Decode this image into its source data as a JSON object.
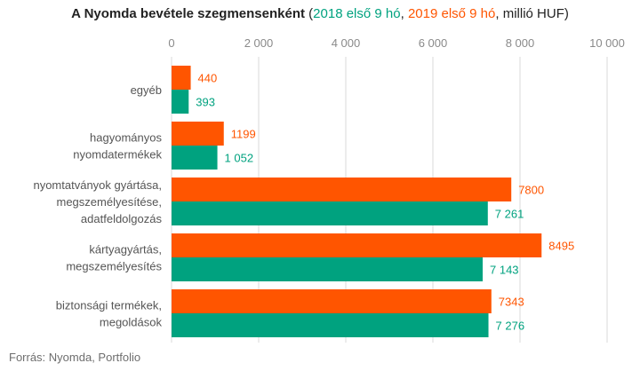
{
  "title": {
    "main": "A Nyomda bevétele szegmensenként",
    "open": "(",
    "series_2018": "2018 első 9 hó",
    "sep1": ", ",
    "series_2019": "2019 első 9 hó",
    "sep2": ", ",
    "unit": "millió  HUF",
    "close": ")"
  },
  "source": "Forrás: Nyomda, Portfolio",
  "colors": {
    "series_2019": "#ff5500",
    "series_2018": "#00a27f",
    "grid": "#d9d9d9",
    "tick_text": "#8a8a8a",
    "category_text": "#555555"
  },
  "chart_data": {
    "type": "bar",
    "orientation": "horizontal",
    "title": "A Nyomda bevétele szegmensenként (2018 első 9 hó, 2019 első 9 hó, millió  HUF)",
    "xlim": [
      0,
      10000
    ],
    "xticks": [
      0,
      2000,
      4000,
      6000,
      8000,
      10000
    ],
    "xtick_labels": [
      "0",
      "2 000",
      "4 000",
      "6 000",
      "8 000",
      "10 000"
    ],
    "grid": true,
    "axis_position": "top",
    "categories": [
      [
        "egyéb"
      ],
      [
        "hagyományos",
        "nyomdatermékek"
      ],
      [
        "nyomtatványok gyártása,",
        "megszemélyesítése,",
        "adatfeldolgozás"
      ],
      [
        "kártyagyártás,",
        "megszemélyesítés"
      ],
      [
        "biztonsági termékek,",
        "megoldások"
      ]
    ],
    "series": [
      {
        "name": "2019 első 9 hó",
        "values": [
          440,
          1199,
          7800,
          8495,
          7343
        ],
        "labels": [
          "440",
          "1199",
          "7800",
          "8495",
          "7343"
        ]
      },
      {
        "name": "2018 első 9 hó",
        "values": [
          393,
          1052,
          7261,
          7143,
          7276
        ],
        "labels": [
          "393",
          "1 052",
          "7 261",
          "7 143",
          "7 276"
        ]
      }
    ]
  }
}
